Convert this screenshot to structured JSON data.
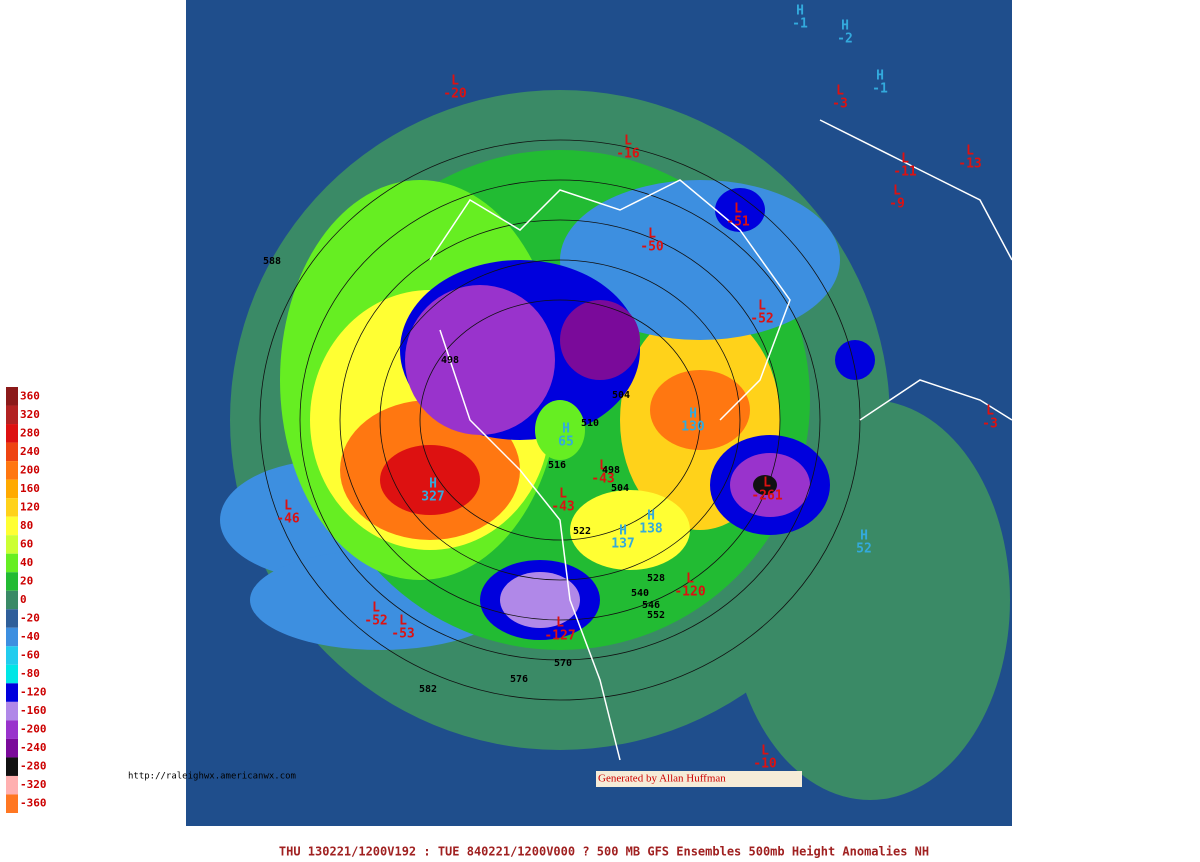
{
  "legend": {
    "items": [
      {
        "label": 360,
        "color": "#8b1a1a"
      },
      {
        "label": 320,
        "color": "#b22222"
      },
      {
        "label": 280,
        "color": "#dd1111"
      },
      {
        "label": 240,
        "color": "#ee4411"
      },
      {
        "label": 200,
        "color": "#ff7711"
      },
      {
        "label": 160,
        "color": "#ffaa00"
      },
      {
        "label": 120,
        "color": "#ffd21a"
      },
      {
        "label": 80,
        "color": "#ffff33"
      },
      {
        "label": 60,
        "color": "#ccff33"
      },
      {
        "label": 40,
        "color": "#66ee22"
      },
      {
        "label": 20,
        "color": "#22bb33"
      },
      {
        "label": 0,
        "color": "#3a8a66"
      },
      {
        "label": -20,
        "color": "#2f5f9a"
      },
      {
        "label": -40,
        "color": "#3d8fe0"
      },
      {
        "label": -60,
        "color": "#22ccee"
      },
      {
        "label": -80,
        "color": "#00e6e6"
      },
      {
        "label": -120,
        "color": "#0000dd"
      },
      {
        "label": -160,
        "color": "#b088e8"
      },
      {
        "label": -200,
        "color": "#9933cc"
      },
      {
        "label": -240,
        "color": "#7a0a9a"
      },
      {
        "label": -280,
        "color": "#111111"
      },
      {
        "label": -320,
        "color": "#ffb0b0"
      },
      {
        "label": -360,
        "color": "#ff7722"
      }
    ]
  },
  "centers": [
    {
      "type": "L",
      "value": -20
    },
    {
      "type": "L",
      "value": -16
    },
    {
      "type": "L",
      "value": -50
    },
    {
      "type": "L",
      "value": -51
    },
    {
      "type": "L",
      "value": -52
    },
    {
      "type": "H",
      "value": 130
    },
    {
      "type": "L",
      "value": -261
    },
    {
      "type": "H",
      "value": 327
    },
    {
      "type": "L",
      "value": -46
    },
    {
      "type": "L",
      "value": -52
    },
    {
      "type": "L",
      "value": -53
    },
    {
      "type": "L",
      "value": -43
    },
    {
      "type": "L",
      "value": -43
    },
    {
      "type": "H",
      "value": 138
    },
    {
      "type": "H",
      "value": 137
    },
    {
      "type": "L",
      "value": -127
    },
    {
      "type": "L",
      "value": -120
    },
    {
      "type": "H",
      "value": 52
    },
    {
      "type": "H",
      "value": 65
    },
    {
      "type": "L",
      "value": -10
    },
    {
      "type": "L",
      "value": -13
    },
    {
      "type": "L",
      "value": -11
    },
    {
      "type": "L",
      "value": -9
    },
    {
      "type": "H",
      "value": -1
    },
    {
      "type": "H",
      "value": -2
    },
    {
      "type": "H",
      "value": -1
    },
    {
      "type": "L",
      "value": -3
    },
    {
      "type": "L",
      "value": -3
    }
  ],
  "contour_labels": [
    498,
    510,
    516,
    504,
    522,
    570,
    576,
    582,
    588,
    504,
    528,
    540,
    546,
    552,
    498
  ],
  "footer": "THU 130221/1200V192 : TUE 840221/1200V000  ? 500 MB GFS Ensembles 500mb Height Anomalies NH",
  "credit": "Generated by Allan Huffman",
  "url": "http://raleighwx.americanwx.com"
}
